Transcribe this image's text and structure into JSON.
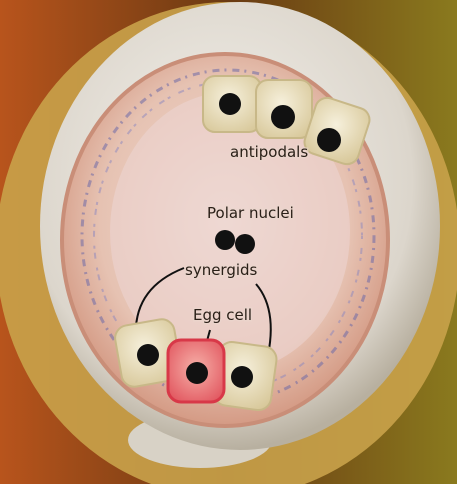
{
  "labels": {
    "antipodals": "antipodals",
    "polar_nuclei": "Polar nuclei",
    "synergids": "synergids",
    "egg_cell": "Egg cell"
  },
  "colors": {
    "background_left": "#b8541c",
    "background_right": "#8a7a1e",
    "integument_outer": "#c9a24a",
    "ovule_wall": "#e6e2dc",
    "embryo_sac_rim": "#d9a998",
    "embryo_sac_inner": "#e8c4b8",
    "purple_texture": "#6d6aa8",
    "cell_fill": "#ece2c4",
    "egg_cell_fill": "#e86a6a",
    "nucleus": "#111111"
  },
  "icons": [
    "nucleus-dot"
  ]
}
